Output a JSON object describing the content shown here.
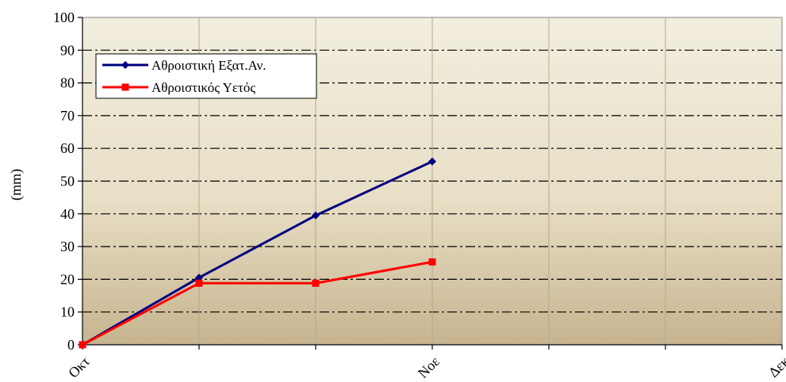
{
  "chart_data": {
    "type": "line",
    "title": "",
    "xlabel": "",
    "ylabel": "(mm)",
    "ylim": [
      0,
      100
    ],
    "yticks": [
      0,
      10,
      20,
      30,
      40,
      50,
      60,
      70,
      80,
      90,
      100
    ],
    "x_tick_labels": [
      "Οκτ",
      "Νοε",
      "Δεκ"
    ],
    "x": [
      0,
      1,
      2,
      3
    ],
    "x_tick_positions": [
      0,
      3,
      6
    ],
    "xlim": [
      0,
      6
    ],
    "grid": true,
    "legend_position": "top-left",
    "series": [
      {
        "name": "Αθροιστική Εξατ.Αν.",
        "color": "#000080",
        "marker": "diamond",
        "values": [
          0,
          20.5,
          39.5,
          56
        ]
      },
      {
        "name": "Αθροιστικός Υετός",
        "color": "#ff0000",
        "marker": "square",
        "values": [
          0,
          18.8,
          18.8,
          25.3
        ]
      }
    ]
  }
}
